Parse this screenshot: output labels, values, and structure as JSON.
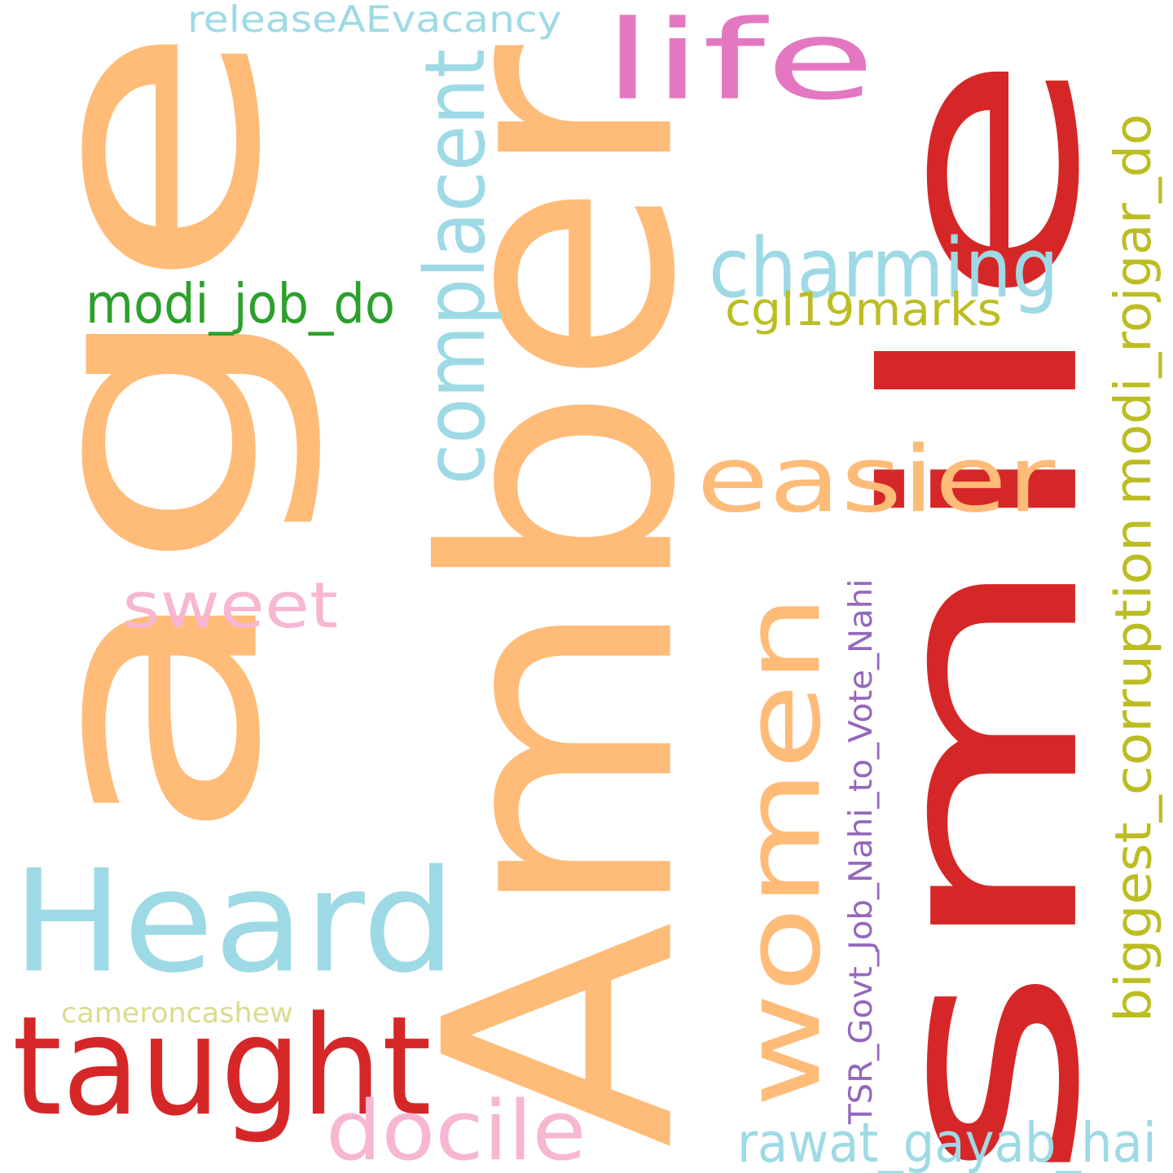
{
  "words": [
    {
      "text": "smile",
      "color": "#d62728"
    },
    {
      "text": "Amber",
      "color": "#ffbb78"
    },
    {
      "text": "age",
      "color": "#ffbb78"
    },
    {
      "text": "Heard",
      "color": "#9edae5"
    },
    {
      "text": "women",
      "color": "#ffbb78"
    },
    {
      "text": "taught",
      "color": "#d62728"
    },
    {
      "text": "life",
      "color": "#e377c2"
    },
    {
      "text": "easier",
      "color": "#ffbb78"
    },
    {
      "text": "charming",
      "color": "#9edae5"
    },
    {
      "text": "complacent",
      "color": "#9edae5"
    },
    {
      "text": "docile",
      "color": "#f7b6d2"
    },
    {
      "text": "sweet",
      "color": "#f7b6d2"
    },
    {
      "text": "rawat_gayab_hai",
      "color": "#9edae5"
    },
    {
      "text": "biggest_corruption",
      "color": "#bcbd22"
    },
    {
      "text": "modi_rojgar_do",
      "color": "#bcbd22"
    },
    {
      "text": "modi_job_do",
      "color": "#2ca02c"
    },
    {
      "text": "cgl19marks",
      "color": "#bcbd22"
    },
    {
      "text": "releaseAEvacancy",
      "color": "#9edae5"
    },
    {
      "text": "TSR_Govt_Job_Nahi_to_Vote_Nahi",
      "color": "#9467bd"
    },
    {
      "text": "cameroncashew",
      "color": "#dbdb8d"
    }
  ]
}
